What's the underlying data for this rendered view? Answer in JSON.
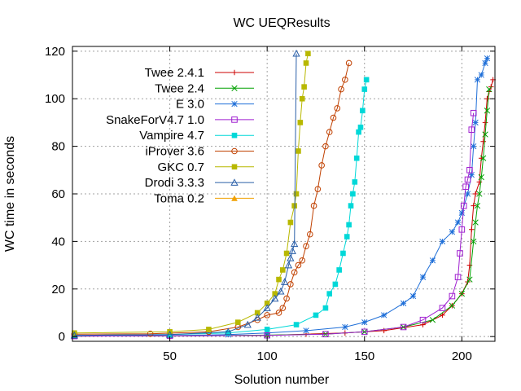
{
  "chart_data": {
    "type": "line",
    "title": "WC UEQResults",
    "xlabel": "Solution number",
    "ylabel": "WC time in seconds",
    "xlim": [
      0,
      217
    ],
    "ylim": [
      -2,
      122
    ],
    "xticks": [
      50,
      100,
      150,
      200
    ],
    "yticks": [
      0,
      20,
      40,
      60,
      80,
      100,
      120
    ],
    "grid": true,
    "legend_position": "top-left",
    "series": [
      {
        "name": "Twee 2.4.1",
        "color": "#cc0000",
        "marker": "plus",
        "points": [
          [
            1,
            0.2
          ],
          [
            50,
            0.3
          ],
          [
            100,
            0.5
          ],
          [
            120,
            1
          ],
          [
            140,
            1.5
          ],
          [
            160,
            2.5
          ],
          [
            180,
            5
          ],
          [
            190,
            9
          ],
          [
            195,
            13
          ],
          [
            200,
            18
          ],
          [
            203,
            23
          ],
          [
            204,
            30
          ],
          [
            205,
            45
          ],
          [
            206,
            55
          ],
          [
            207,
            60
          ],
          [
            209,
            65
          ],
          [
            210,
            75
          ],
          [
            211,
            82
          ],
          [
            212,
            90
          ],
          [
            213,
            100
          ],
          [
            214,
            103
          ],
          [
            215,
            105
          ],
          [
            216,
            108
          ]
        ]
      },
      {
        "name": "Twee 2.4",
        "color": "#00a000",
        "marker": "x",
        "points": [
          [
            1,
            0.2
          ],
          [
            50,
            0.3
          ],
          [
            100,
            0.6
          ],
          [
            130,
            1
          ],
          [
            150,
            2
          ],
          [
            170,
            4
          ],
          [
            185,
            7
          ],
          [
            195,
            13
          ],
          [
            200,
            18
          ],
          [
            204,
            24
          ],
          [
            206,
            40
          ],
          [
            207,
            48
          ],
          [
            208,
            55
          ],
          [
            209,
            60
          ],
          [
            210,
            67
          ],
          [
            211,
            75
          ],
          [
            212,
            85
          ],
          [
            213,
            95
          ],
          [
            214,
            104
          ]
        ]
      },
      {
        "name": "E 3.0",
        "color": "#1f6fd8",
        "marker": "star",
        "points": [
          [
            1,
            0.3
          ],
          [
            50,
            0.4
          ],
          [
            80,
            0.8
          ],
          [
            100,
            1.5
          ],
          [
            120,
            2.5
          ],
          [
            140,
            4
          ],
          [
            150,
            6
          ],
          [
            160,
            9
          ],
          [
            170,
            14
          ],
          [
            175,
            17
          ],
          [
            180,
            25
          ],
          [
            185,
            32
          ],
          [
            190,
            40
          ],
          [
            195,
            44
          ],
          [
            198,
            48
          ],
          [
            200,
            52
          ],
          [
            203,
            60
          ],
          [
            205,
            68
          ],
          [
            206,
            80
          ],
          [
            207,
            90
          ],
          [
            208,
            108
          ],
          [
            210,
            110
          ],
          [
            212,
            115
          ],
          [
            213,
            117
          ]
        ]
      },
      {
        "name": "SnakeForV4.7 1.0",
        "color": "#a020d0",
        "marker": "square-open",
        "points": [
          [
            1,
            0.2
          ],
          [
            50,
            0.3
          ],
          [
            100,
            0.5
          ],
          [
            130,
            1
          ],
          [
            150,
            2
          ],
          [
            170,
            4
          ],
          [
            180,
            7
          ],
          [
            190,
            12
          ],
          [
            195,
            17
          ],
          [
            198,
            25
          ],
          [
            199,
            35
          ],
          [
            200,
            45
          ],
          [
            201,
            55
          ],
          [
            202,
            63
          ],
          [
            203,
            66
          ],
          [
            204,
            70
          ],
          [
            205,
            87
          ],
          [
            206,
            94
          ]
        ]
      },
      {
        "name": "Vampire 4.7",
        "color": "#00d8d8",
        "marker": "square",
        "points": [
          [
            1,
            0.5
          ],
          [
            50,
            0.8
          ],
          [
            80,
            1.5
          ],
          [
            100,
            3
          ],
          [
            115,
            5
          ],
          [
            125,
            9
          ],
          [
            130,
            12
          ],
          [
            132,
            18
          ],
          [
            135,
            22
          ],
          [
            137,
            28
          ],
          [
            139,
            35
          ],
          [
            141,
            42
          ],
          [
            142,
            47
          ],
          [
            143,
            55
          ],
          [
            144,
            60
          ],
          [
            145,
            65
          ],
          [
            146,
            75
          ],
          [
            147,
            86
          ],
          [
            148,
            88
          ],
          [
            149,
            95
          ],
          [
            150,
            104
          ],
          [
            151,
            108
          ]
        ]
      },
      {
        "name": "iProver 3.6",
        "color": "#c04000",
        "marker": "circle-open",
        "points": [
          [
            1,
            1
          ],
          [
            40,
            1.2
          ],
          [
            70,
            2
          ],
          [
            85,
            4
          ],
          [
            95,
            7
          ],
          [
            100,
            9
          ],
          [
            106,
            10
          ],
          [
            108,
            12
          ],
          [
            110,
            16
          ],
          [
            112,
            22
          ],
          [
            114,
            27
          ],
          [
            116,
            30
          ],
          [
            118,
            32
          ],
          [
            120,
            38
          ],
          [
            122,
            43
          ],
          [
            124,
            55
          ],
          [
            126,
            62
          ],
          [
            128,
            72
          ],
          [
            130,
            80
          ],
          [
            132,
            86
          ],
          [
            134,
            92
          ],
          [
            136,
            96
          ],
          [
            138,
            104
          ],
          [
            140,
            108
          ],
          [
            142,
            115
          ]
        ]
      },
      {
        "name": "GKC 0.7",
        "color": "#b8b800",
        "marker": "square",
        "points": [
          [
            1,
            1.5
          ],
          [
            50,
            2
          ],
          [
            70,
            3
          ],
          [
            85,
            6
          ],
          [
            95,
            10
          ],
          [
            100,
            14
          ],
          [
            104,
            18
          ],
          [
            106,
            24
          ],
          [
            108,
            28
          ],
          [
            110,
            35
          ],
          [
            112,
            48
          ],
          [
            114,
            55
          ],
          [
            115,
            60
          ],
          [
            116,
            78
          ],
          [
            117,
            90
          ],
          [
            118,
            100
          ],
          [
            119,
            105
          ],
          [
            120,
            115
          ],
          [
            121,
            119
          ]
        ]
      },
      {
        "name": "Drodi 3.3.3",
        "color": "#2a5fa8",
        "marker": "triangle-open",
        "points": [
          [
            1,
            0.5
          ],
          [
            50,
            0.8
          ],
          [
            80,
            2
          ],
          [
            90,
            5
          ],
          [
            95,
            8
          ],
          [
            100,
            12
          ],
          [
            104,
            16
          ],
          [
            107,
            19
          ],
          [
            109,
            23
          ],
          [
            111,
            30
          ],
          [
            112,
            33
          ],
          [
            113,
            36
          ],
          [
            114,
            39
          ],
          [
            115,
            119
          ]
        ]
      },
      {
        "name": "Toma 0.2",
        "color": "#f0a000",
        "marker": "triangle",
        "points": []
      }
    ]
  }
}
